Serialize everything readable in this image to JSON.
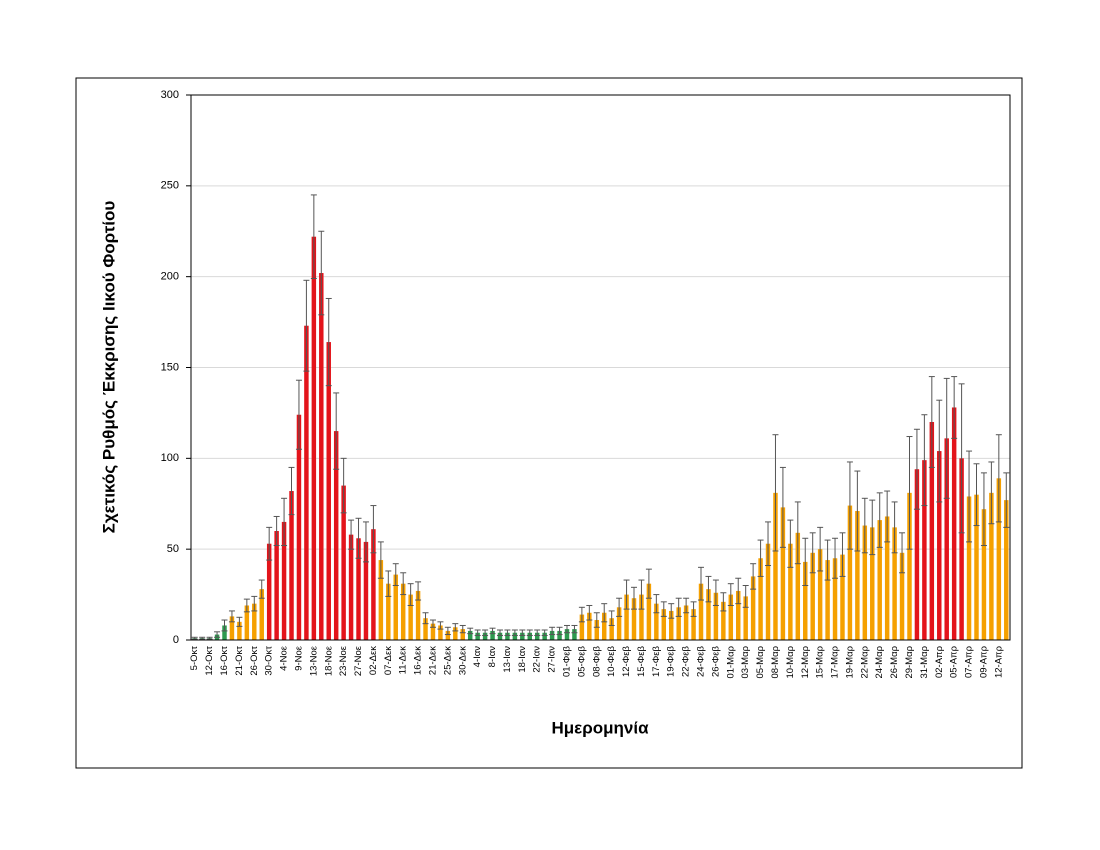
{
  "chart_data": {
    "type": "bar",
    "x_label": "Ημερομηνία",
    "y_label": "Σχετικός Ρυθμός Έκκρισης Ιικού Φορτίου",
    "categories": [
      "5-Οκτ",
      null,
      "12-Οκτ",
      null,
      "16-Οκτ",
      null,
      "21-Οκτ",
      null,
      "26-Οκτ",
      null,
      "30-Οκτ",
      null,
      "4-Νοε",
      null,
      "9-Νοε",
      null,
      "13-Νοε",
      null,
      "18-Νοε",
      null,
      "23-Νοε",
      null,
      "27-Νοε",
      null,
      "02-Δεκ",
      null,
      "07-Δεκ",
      null,
      "11-Δεκ",
      null,
      "16-Δεκ",
      null,
      "21-Δεκ",
      null,
      "25-Δεκ",
      null,
      "30-Δεκ",
      null,
      "4-Ιαν",
      null,
      "8-Ιαν",
      null,
      "13-Ιαν",
      null,
      "18-Ιαν",
      null,
      "22-Ιαν",
      null,
      "27-Ιαν",
      null,
      "01-Φεβ",
      null,
      "05-Φεβ",
      null,
      "08-Φεβ",
      null,
      "10-Φεβ",
      null,
      "12-Φεβ",
      null,
      "15-Φεβ",
      null,
      "17-Φεβ",
      null,
      "19-Φεβ",
      null,
      "22-Φεβ",
      null,
      "24-Φεβ",
      null,
      "26-Φεβ",
      null,
      "01-Μαρ",
      null,
      "03-Μαρ",
      null,
      "05-Μαρ",
      null,
      "08-Μαρ",
      null,
      "10-Μαρ",
      null,
      "12-Μαρ",
      null,
      "15-Μαρ",
      null,
      "17-Μαρ",
      null,
      "19-Μαρ",
      null,
      "22-Μαρ",
      null,
      "24-Μαρ",
      null,
      "26-Μαρ",
      null,
      "29-Μαρ",
      null,
      "31-Μαρ",
      null,
      "02-Απρ",
      null,
      "05-Απρ",
      null,
      "07-Απρ",
      null,
      "09-Απρ",
      null,
      "12-Απρ",
      null
    ],
    "values": [
      1,
      1,
      1,
      3,
      8,
      13,
      10,
      19,
      20,
      28,
      53,
      60,
      65,
      82,
      124,
      173,
      222,
      202,
      164,
      115,
      85,
      58,
      56,
      54,
      61,
      44,
      31,
      36,
      31,
      25,
      27,
      12,
      9,
      8,
      5,
      7,
      6,
      5,
      4,
      4,
      5,
      4,
      4,
      4,
      4,
      4,
      4,
      4,
      5,
      5,
      6,
      6,
      14,
      15,
      11,
      15,
      12,
      18,
      25,
      23,
      25,
      31,
      20,
      17,
      16,
      18,
      19,
      17,
      31,
      28,
      26,
      21,
      25,
      27,
      24,
      35,
      45,
      53,
      81,
      73,
      53,
      59,
      43,
      48,
      50,
      44,
      45,
      47,
      74,
      71,
      63,
      62,
      66,
      68,
      62,
      48,
      81,
      94,
      99,
      120,
      104,
      111,
      128,
      100,
      79,
      80,
      72,
      81,
      89,
      77
    ],
    "errors": [
      0.5,
      0.5,
      0.5,
      1.5,
      3,
      3,
      2.5,
      3.5,
      4,
      5,
      9,
      8,
      13,
      13,
      19,
      25,
      23,
      23,
      24,
      21,
      15,
      8,
      11,
      11,
      13,
      10,
      7,
      6,
      6,
      6,
      5,
      3,
      2,
      2,
      2,
      2,
      2,
      1.5,
      1.5,
      1.5,
      1.5,
      1.5,
      1.5,
      1.5,
      1.5,
      1.5,
      1.5,
      1.5,
      2,
      2,
      2,
      2,
      4,
      4,
      4,
      5,
      4,
      5,
      8,
      6,
      8,
      8,
      5,
      4,
      4,
      5,
      4,
      4,
      9,
      7,
      7,
      5,
      6,
      7,
      6,
      7,
      10,
      12,
      32,
      22,
      13,
      17,
      13,
      11,
      12,
      11,
      11,
      12,
      24,
      22,
      15,
      15,
      15,
      14,
      14,
      11,
      31,
      22,
      25,
      25,
      28,
      33,
      17,
      41,
      25,
      17,
      20,
      17,
      24,
      15
    ],
    "colors": [
      "#2e9a4f",
      "#2e9a4f",
      "#2e9a4f",
      "#2e9a4f",
      "#2e9a4f",
      "#f5a000",
      "#f5a000",
      "#f5a000",
      "#f5a000",
      "#f5a000",
      "#e3141b",
      "#e3141b",
      "#e3141b",
      "#e3141b",
      "#e3141b",
      "#e3141b",
      "#e3141b",
      "#e3141b",
      "#e3141b",
      "#e3141b",
      "#e3141b",
      "#e3141b",
      "#e3141b",
      "#e3141b",
      "#e3141b",
      "#f5a000",
      "#f5a000",
      "#f5a000",
      "#f5a000",
      "#f5a000",
      "#f5a000",
      "#f5a000",
      "#f5a000",
      "#f5a000",
      "#f5a000",
      "#f5a000",
      "#f5a000",
      "#2e9a4f",
      "#2e9a4f",
      "#2e9a4f",
      "#2e9a4f",
      "#2e9a4f",
      "#2e9a4f",
      "#2e9a4f",
      "#2e9a4f",
      "#2e9a4f",
      "#2e9a4f",
      "#2e9a4f",
      "#2e9a4f",
      "#2e9a4f",
      "#2e9a4f",
      "#2e9a4f",
      "#f5a000",
      "#f5a000",
      "#f5a000",
      "#f5a000",
      "#f5a000",
      "#f5a000",
      "#f5a000",
      "#f5a000",
      "#f5a000",
      "#f5a000",
      "#f5a000",
      "#f5a000",
      "#f5a000",
      "#f5a000",
      "#f5a000",
      "#f5a000",
      "#f5a000",
      "#f5a000",
      "#f5a000",
      "#f5a000",
      "#f5a000",
      "#f5a000",
      "#f5a000",
      "#f5a000",
      "#f5a000",
      "#f5a000",
      "#f5a000",
      "#f5a000",
      "#f5a000",
      "#f5a000",
      "#f5a000",
      "#f5a000",
      "#f5a000",
      "#f5a000",
      "#f5a000",
      "#f5a000",
      "#f5a000",
      "#f5a000",
      "#f5a000",
      "#f5a000",
      "#f5a000",
      "#f5a000",
      "#f5a000",
      "#f5a000",
      "#f5a000",
      "#e3141b",
      "#e3141b",
      "#e3141b",
      "#e3141b",
      "#e3141b",
      "#e3141b",
      "#e3141b",
      "#f5a000",
      "#f5a000",
      "#f5a000",
      "#f5a000",
      "#f5a000",
      "#f5a000"
    ],
    "ylim": [
      0,
      300
    ],
    "yticks": [
      0,
      50,
      100,
      150,
      200,
      250,
      300
    ],
    "grid": true
  }
}
